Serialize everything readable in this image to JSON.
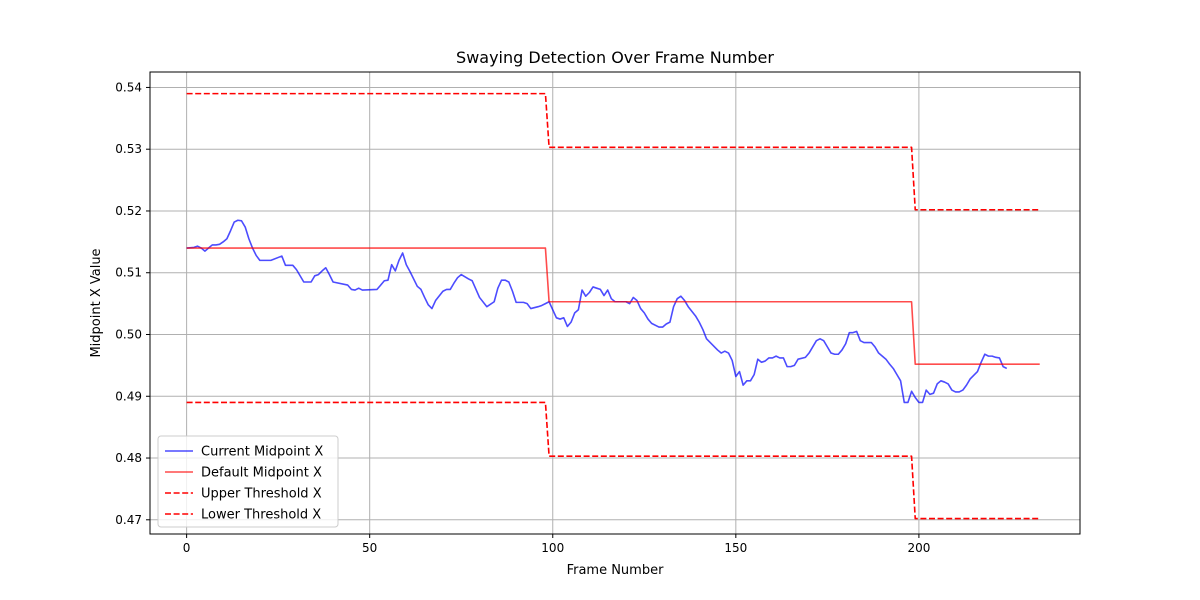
{
  "chart_data": {
    "type": "line",
    "title": "Swaying Detection Over Frame Number",
    "xlabel": "Frame Number",
    "ylabel": "Midpoint X Value",
    "xlim": [
      -10,
      244
    ],
    "ylim": [
      0.4677,
      0.5425
    ],
    "x_ticks": [
      0,
      50,
      100,
      150,
      200
    ],
    "y_ticks": [
      0.47,
      0.48,
      0.49,
      0.5,
      0.51,
      0.52,
      0.53,
      0.54
    ],
    "y_tick_labels": [
      "0.47",
      "0.48",
      "0.49",
      "0.50",
      "0.51",
      "0.52",
      "0.53",
      "0.54"
    ],
    "grid": true,
    "legend_position": "lower-left",
    "series": [
      {
        "name": "Current Midpoint X",
        "color": "#0000ff",
        "opacity": 0.7,
        "style": "solid",
        "points": [
          [
            0,
            0.514
          ],
          [
            2,
            0.5141
          ],
          [
            3,
            0.5143
          ],
          [
            4,
            0.514
          ],
          [
            5,
            0.5135
          ],
          [
            6,
            0.514
          ],
          [
            7,
            0.5145
          ],
          [
            8,
            0.5145
          ],
          [
            9,
            0.5146
          ],
          [
            10,
            0.515
          ],
          [
            11,
            0.5155
          ],
          [
            12,
            0.5168
          ],
          [
            13,
            0.5182
          ],
          [
            14,
            0.5185
          ],
          [
            15,
            0.5184
          ],
          [
            16,
            0.5174
          ],
          [
            17,
            0.5155
          ],
          [
            18,
            0.514
          ],
          [
            19,
            0.5128
          ],
          [
            20,
            0.512
          ],
          [
            23,
            0.512
          ],
          [
            26,
            0.5127
          ],
          [
            27,
            0.5112
          ],
          [
            29,
            0.5112
          ],
          [
            30,
            0.5105
          ],
          [
            32,
            0.5085
          ],
          [
            34,
            0.5085
          ],
          [
            35,
            0.5095
          ],
          [
            36,
            0.5097
          ],
          [
            37,
            0.5103
          ],
          [
            38,
            0.5108
          ],
          [
            39,
            0.5097
          ],
          [
            40,
            0.5085
          ],
          [
            44,
            0.508
          ],
          [
            45,
            0.5073
          ],
          [
            46,
            0.5072
          ],
          [
            47,
            0.5075
          ],
          [
            48,
            0.5072
          ],
          [
            52,
            0.5073
          ],
          [
            53,
            0.508
          ],
          [
            54,
            0.5087
          ],
          [
            55,
            0.5088
          ],
          [
            56,
            0.5113
          ],
          [
            57,
            0.5103
          ],
          [
            58,
            0.512
          ],
          [
            59,
            0.5132
          ],
          [
            60,
            0.5113
          ],
          [
            61,
            0.5102
          ],
          [
            63,
            0.5078
          ],
          [
            64,
            0.5073
          ],
          [
            65,
            0.506
          ],
          [
            66,
            0.5048
          ],
          [
            67,
            0.5042
          ],
          [
            68,
            0.5055
          ],
          [
            70,
            0.507
          ],
          [
            71,
            0.5073
          ],
          [
            72,
            0.5073
          ],
          [
            73,
            0.5083
          ],
          [
            74,
            0.5092
          ],
          [
            75,
            0.5097
          ],
          [
            77,
            0.509
          ],
          [
            78,
            0.5087
          ],
          [
            80,
            0.506
          ],
          [
            82,
            0.5045
          ],
          [
            84,
            0.5053
          ],
          [
            85,
            0.5075
          ],
          [
            86,
            0.5088
          ],
          [
            87,
            0.5088
          ],
          [
            88,
            0.5085
          ],
          [
            89,
            0.507
          ],
          [
            90,
            0.5052
          ],
          [
            92,
            0.5052
          ],
          [
            93,
            0.505
          ],
          [
            94,
            0.5042
          ],
          [
            96,
            0.5045
          ],
          [
            97,
            0.5047
          ],
          [
            98,
            0.505
          ],
          [
            99,
            0.5053
          ],
          [
            100,
            0.504
          ],
          [
            101,
            0.5027
          ],
          [
            102,
            0.5025
          ],
          [
            103,
            0.5027
          ],
          [
            104,
            0.5013
          ],
          [
            105,
            0.502
          ],
          [
            106,
            0.5035
          ],
          [
            107,
            0.504
          ],
          [
            108,
            0.5072
          ],
          [
            109,
            0.5062
          ],
          [
            110,
            0.5068
          ],
          [
            111,
            0.5077
          ],
          [
            112,
            0.5075
          ],
          [
            113,
            0.5073
          ],
          [
            114,
            0.5063
          ],
          [
            115,
            0.5072
          ],
          [
            116,
            0.5058
          ],
          [
            117,
            0.5053
          ],
          [
            118,
            0.5053
          ],
          [
            120,
            0.5053
          ],
          [
            121,
            0.505
          ],
          [
            122,
            0.506
          ],
          [
            123,
            0.5055
          ],
          [
            124,
            0.5042
          ],
          [
            125,
            0.5035
          ],
          [
            126,
            0.5025
          ],
          [
            127,
            0.5018
          ],
          [
            129,
            0.5012
          ],
          [
            130,
            0.5012
          ],
          [
            131,
            0.5017
          ],
          [
            132,
            0.502
          ],
          [
            133,
            0.5045
          ],
          [
            134,
            0.5058
          ],
          [
            135,
            0.5062
          ],
          [
            136,
            0.5055
          ],
          [
            137,
            0.5045
          ],
          [
            139,
            0.503
          ],
          [
            140,
            0.502
          ],
          [
            141,
            0.5008
          ],
          [
            142,
            0.4993
          ],
          [
            145,
            0.4975
          ],
          [
            146,
            0.497
          ],
          [
            147,
            0.4973
          ],
          [
            148,
            0.497
          ],
          [
            149,
            0.4958
          ],
          [
            150,
            0.4932
          ],
          [
            151,
            0.494
          ],
          [
            152,
            0.4918
          ],
          [
            153,
            0.4925
          ],
          [
            154,
            0.4925
          ],
          [
            155,
            0.4935
          ],
          [
            156,
            0.496
          ],
          [
            157,
            0.4955
          ],
          [
            158,
            0.4957
          ],
          [
            159,
            0.4962
          ],
          [
            160,
            0.4962
          ],
          [
            161,
            0.4965
          ],
          [
            162,
            0.4962
          ],
          [
            163,
            0.4962
          ],
          [
            164,
            0.4948
          ],
          [
            165,
            0.4948
          ],
          [
            166,
            0.495
          ],
          [
            167,
            0.496
          ],
          [
            169,
            0.4963
          ],
          [
            170,
            0.497
          ],
          [
            172,
            0.499
          ],
          [
            173,
            0.4993
          ],
          [
            174,
            0.499
          ],
          [
            175,
            0.498
          ],
          [
            176,
            0.497
          ],
          [
            177,
            0.4968
          ],
          [
            178,
            0.4968
          ],
          [
            179,
            0.4975
          ],
          [
            180,
            0.4985
          ],
          [
            181,
            0.5003
          ],
          [
            182,
            0.5003
          ],
          [
            183,
            0.5005
          ],
          [
            184,
            0.499
          ],
          [
            185,
            0.4987
          ],
          [
            187,
            0.4987
          ],
          [
            188,
            0.498
          ],
          [
            189,
            0.497
          ],
          [
            190,
            0.4965
          ],
          [
            191,
            0.496
          ],
          [
            192,
            0.4952
          ],
          [
            193,
            0.4945
          ],
          [
            194,
            0.4935
          ],
          [
            195,
            0.4925
          ],
          [
            196,
            0.489
          ],
          [
            197,
            0.489
          ],
          [
            198,
            0.4908
          ],
          [
            199,
            0.4898
          ],
          [
            200,
            0.489
          ],
          [
            201,
            0.489
          ],
          [
            202,
            0.491
          ],
          [
            203,
            0.4903
          ],
          [
            204,
            0.4905
          ],
          [
            205,
            0.492
          ],
          [
            206,
            0.4925
          ],
          [
            207,
            0.4923
          ],
          [
            208,
            0.492
          ],
          [
            209,
            0.491
          ],
          [
            210,
            0.4907
          ],
          [
            211,
            0.4907
          ],
          [
            212,
            0.491
          ],
          [
            213,
            0.4918
          ],
          [
            214,
            0.4928
          ],
          [
            216,
            0.494
          ],
          [
            217,
            0.4955
          ],
          [
            218,
            0.4968
          ],
          [
            219,
            0.4965
          ],
          [
            220,
            0.4965
          ],
          [
            221,
            0.4963
          ],
          [
            222,
            0.4962
          ],
          [
            223,
            0.4948
          ],
          [
            224,
            0.4945
          ]
        ]
      },
      {
        "name": "Default Midpoint X",
        "color": "#ff0000",
        "opacity": 0.7,
        "style": "solid",
        "points": [
          [
            0,
            0.514
          ],
          [
            98,
            0.514
          ],
          [
            99,
            0.5053
          ],
          [
            198,
            0.5053
          ],
          [
            199,
            0.4952
          ],
          [
            233,
            0.4952
          ]
        ]
      },
      {
        "name": "Upper Threshold X",
        "color": "#ff0000",
        "opacity": 1,
        "style": "dashed",
        "points": [
          [
            0,
            0.539
          ],
          [
            98,
            0.539
          ],
          [
            99,
            0.5303
          ],
          [
            198,
            0.5303
          ],
          [
            199,
            0.5202
          ],
          [
            233,
            0.5202
          ]
        ]
      },
      {
        "name": "Lower Threshold X",
        "color": "#ff0000",
        "opacity": 1,
        "style": "dashed",
        "points": [
          [
            0,
            0.489
          ],
          [
            98,
            0.489
          ],
          [
            99,
            0.4803
          ],
          [
            198,
            0.4803
          ],
          [
            199,
            0.4702
          ],
          [
            233,
            0.4702
          ]
        ]
      }
    ]
  }
}
